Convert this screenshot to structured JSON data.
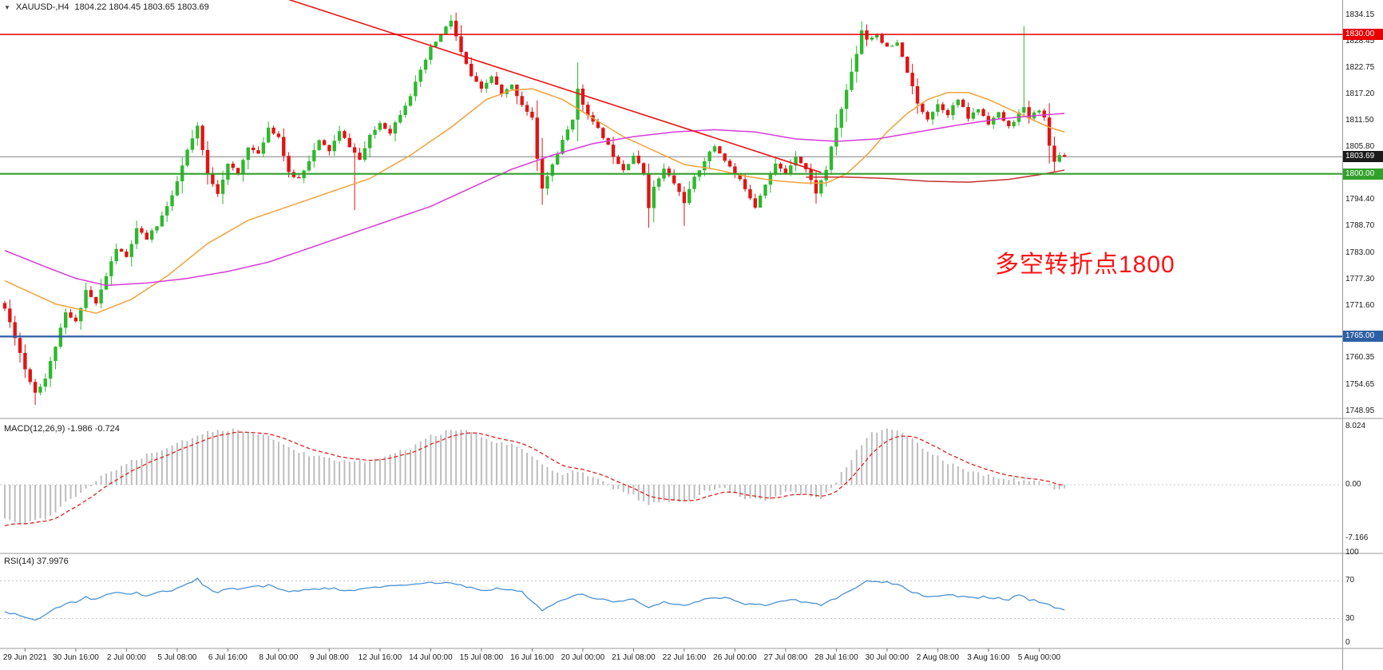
{
  "title": {
    "symbol": "XAUUSD-,H4",
    "ohlc": "1804.22 1804.45 1803.65 1803.69"
  },
  "annotation": {
    "text": "多空转折点1800",
    "color": "#ff1212"
  },
  "indicators": {
    "macd_label": "MACD(12,26,9) -1.986 -0.724",
    "rsi_label": "RSI(14) 37.9976"
  },
  "axis": {
    "price_labels": [
      "1834.15",
      "1828.45",
      "1822.75",
      "1817.20",
      "1811.50",
      "1805.80",
      "1794.40",
      "1788.70",
      "1783.00",
      "1777.30",
      "1771.60",
      "1760.35",
      "1754.65",
      "1748.95"
    ],
    "macd_labels": [
      {
        "text": "8.024",
        "value": 8.024
      },
      {
        "text": "0.00",
        "value": 0
      },
      {
        "text": "-7.166",
        "value": -7.166
      }
    ],
    "rsi_labels": [
      {
        "text": "100",
        "value": 100
      },
      {
        "text": "70",
        "value": 70
      },
      {
        "text": "30",
        "value": 30
      },
      {
        "text": "0",
        "value": 0
      }
    ],
    "date_labels": [
      "29 Jun 2021",
      "30 Jun 16:00",
      "2 Jul 00:00",
      "5 Jul 08:00",
      "6 Jul 16:00",
      "8 Jul 00:00",
      "9 Jul 08:00",
      "12 Jul 16:00",
      "14 Jul 00:00",
      "15 Jul 08:00",
      "16 Jul 16:00",
      "20 Jul 00:00",
      "21 Jul 08:00",
      "22 Jul 16:00",
      "26 Jul 00:00",
      "27 Jul 08:00",
      "28 Jul 16:00",
      "30 Jul 00:00",
      "2 Aug 08:00",
      "3 Aug 16:00",
      "5 Aug 00:00"
    ]
  },
  "chart_data": {
    "type": "candlestick",
    "symbol": "XAUUSD",
    "timeframe": "H4",
    "num_bars": 210,
    "price_axis_range": [
      1747.3,
      1837.4
    ],
    "close_anchors": [
      [
        0,
        1771
      ],
      [
        2,
        1765
      ],
      [
        4,
        1758
      ],
      [
        6,
        1753
      ],
      [
        8,
        1756
      ],
      [
        10,
        1763
      ],
      [
        12,
        1770
      ],
      [
        14,
        1768
      ],
      [
        16,
        1775
      ],
      [
        18,
        1772
      ],
      [
        20,
        1778
      ],
      [
        22,
        1784
      ],
      [
        24,
        1782
      ],
      [
        26,
        1788
      ],
      [
        28,
        1786
      ],
      [
        30,
        1789
      ],
      [
        33,
        1795
      ],
      [
        36,
        1805
      ],
      [
        38,
        1810
      ],
      [
        40,
        1800
      ],
      [
        42,
        1796
      ],
      [
        44,
        1802
      ],
      [
        46,
        1800
      ],
      [
        48,
        1806
      ],
      [
        50,
        1804
      ],
      [
        52,
        1810
      ],
      [
        54,
        1808
      ],
      [
        56,
        1800
      ],
      [
        58,
        1799
      ],
      [
        60,
        1803
      ],
      [
        62,
        1807
      ],
      [
        64,
        1805
      ],
      [
        66,
        1809
      ],
      [
        68,
        1806
      ],
      [
        70,
        1803
      ],
      [
        72,
        1808
      ],
      [
        74,
        1811
      ],
      [
        76,
        1809
      ],
      [
        78,
        1813
      ],
      [
        80,
        1817
      ],
      [
        82,
        1822
      ],
      [
        84,
        1827
      ],
      [
        86,
        1830
      ],
      [
        88,
        1833
      ],
      [
        90,
        1826
      ],
      [
        92,
        1821
      ],
      [
        94,
        1818
      ],
      [
        96,
        1821
      ],
      [
        98,
        1817
      ],
      [
        100,
        1819
      ],
      [
        102,
        1815
      ],
      [
        104,
        1812
      ],
      [
        105,
        1803
      ],
      [
        106,
        1797
      ],
      [
        108,
        1802
      ],
      [
        110,
        1807
      ],
      [
        112,
        1812
      ],
      [
        113,
        1818
      ],
      [
        114,
        1815
      ],
      [
        116,
        1811
      ],
      [
        118,
        1808
      ],
      [
        120,
        1804
      ],
      [
        122,
        1801
      ],
      [
        124,
        1804
      ],
      [
        126,
        1800
      ],
      [
        127,
        1793
      ],
      [
        128,
        1797
      ],
      [
        130,
        1801
      ],
      [
        132,
        1798
      ],
      [
        134,
        1794
      ],
      [
        136,
        1799
      ],
      [
        138,
        1803
      ],
      [
        140,
        1806
      ],
      [
        142,
        1803
      ],
      [
        144,
        1800
      ],
      [
        146,
        1797
      ],
      [
        148,
        1793
      ],
      [
        150,
        1798
      ],
      [
        152,
        1802
      ],
      [
        154,
        1800
      ],
      [
        156,
        1804
      ],
      [
        158,
        1801
      ],
      [
        160,
        1796
      ],
      [
        162,
        1801
      ],
      [
        164,
        1810
      ],
      [
        166,
        1818
      ],
      [
        168,
        1826
      ],
      [
        169,
        1831
      ],
      [
        170,
        1829
      ],
      [
        172,
        1830
      ],
      [
        174,
        1827
      ],
      [
        176,
        1828
      ],
      [
        178,
        1822
      ],
      [
        180,
        1815
      ],
      [
        182,
        1812
      ],
      [
        184,
        1815
      ],
      [
        186,
        1813
      ],
      [
        188,
        1816
      ],
      [
        190,
        1812
      ],
      [
        192,
        1814
      ],
      [
        194,
        1811
      ],
      [
        196,
        1813
      ],
      [
        198,
        1810
      ],
      [
        200,
        1813
      ],
      [
        201,
        1814
      ],
      [
        202,
        1812
      ],
      [
        204,
        1814
      ],
      [
        205,
        1812
      ],
      [
        206,
        1806
      ],
      [
        207,
        1803
      ],
      [
        208,
        1804
      ],
      [
        209,
        1803.69
      ]
    ],
    "wick_overrides": [
      {
        "bar": 6,
        "low": 1750.3
      },
      {
        "bar": 69,
        "low": 1792.2
      },
      {
        "bar": 88,
        "high": 1834.2
      },
      {
        "bar": 106,
        "low": 1793.3
      },
      {
        "bar": 113,
        "high": 1824
      },
      {
        "bar": 134,
        "low": 1788.8
      },
      {
        "bar": 169,
        "high": 1832.8
      },
      {
        "bar": 201,
        "high": 1831.8
      }
    ],
    "hlines": [
      {
        "price": 1830.0,
        "label": "1830.00",
        "color": "#e80000",
        "width": 1.5
      },
      {
        "price": 1800.0,
        "label": "1800.00",
        "color": "#33a02c",
        "width": 2.2
      },
      {
        "price": 1765.0,
        "label": "1765.00",
        "color": "#2e5fa3",
        "width": 2.2
      }
    ],
    "current_price": {
      "price": 1803.69,
      "label": "1803.69",
      "line_color": "#808080",
      "badge_color": "#1b1b1b"
    },
    "trendline": {
      "from_bar": 56,
      "from_price": 1837.5,
      "to_bar": 161,
      "to_price": 1800.3,
      "color": "#e81212"
    },
    "moving_averages": [
      {
        "name": "ma-medium-orange",
        "color": "#f2a23c",
        "anchors": [
          [
            0,
            1777
          ],
          [
            10,
            1772
          ],
          [
            18,
            1770
          ],
          [
            25,
            1773
          ],
          [
            32,
            1778
          ],
          [
            40,
            1785
          ],
          [
            48,
            1790
          ],
          [
            56,
            1793
          ],
          [
            64,
            1796
          ],
          [
            72,
            1799
          ],
          [
            80,
            1804
          ],
          [
            88,
            1810
          ],
          [
            95,
            1816
          ],
          [
            100,
            1818
          ],
          [
            104,
            1818.3
          ],
          [
            110,
            1816
          ],
          [
            116,
            1812
          ],
          [
            122,
            1808
          ],
          [
            128,
            1805
          ],
          [
            134,
            1802
          ],
          [
            140,
            1801
          ],
          [
            146,
            1799.5
          ],
          [
            152,
            1798.5
          ],
          [
            158,
            1798
          ],
          [
            162,
            1798
          ],
          [
            166,
            1800
          ],
          [
            170,
            1804
          ],
          [
            174,
            1809
          ],
          [
            178,
            1813
          ],
          [
            182,
            1816
          ],
          [
            186,
            1817.5
          ],
          [
            190,
            1817.5
          ],
          [
            194,
            1816
          ],
          [
            198,
            1814
          ],
          [
            202,
            1812
          ],
          [
            206,
            1810
          ],
          [
            209,
            1809
          ]
        ]
      },
      {
        "name": "ma-slow-magenta",
        "color": "#d63bd6",
        "anchors": [
          [
            0,
            1783.5
          ],
          [
            8,
            1780
          ],
          [
            14,
            1777.5
          ],
          [
            20,
            1776
          ],
          [
            28,
            1776.5
          ],
          [
            36,
            1777.5
          ],
          [
            44,
            1779
          ],
          [
            52,
            1781
          ],
          [
            60,
            1784
          ],
          [
            68,
            1787
          ],
          [
            76,
            1790
          ],
          [
            84,
            1793
          ],
          [
            92,
            1797
          ],
          [
            100,
            1801
          ],
          [
            108,
            1804
          ],
          [
            116,
            1806.5
          ],
          [
            124,
            1808
          ],
          [
            132,
            1809
          ],
          [
            140,
            1809.5
          ],
          [
            148,
            1809
          ],
          [
            156,
            1807.5
          ],
          [
            164,
            1807
          ],
          [
            172,
            1807.5
          ],
          [
            180,
            1809
          ],
          [
            188,
            1810.5
          ],
          [
            196,
            1811.8
          ],
          [
            204,
            1812.6
          ],
          [
            209,
            1813
          ]
        ]
      },
      {
        "name": "ma-long-red",
        "color": "#c93030",
        "anchors": [
          [
            158,
            1799.3
          ],
          [
            166,
            1799.3
          ],
          [
            174,
            1799
          ],
          [
            182,
            1798.4
          ],
          [
            190,
            1798.2
          ],
          [
            198,
            1798.8
          ],
          [
            204,
            1799.8
          ],
          [
            209,
            1800.8
          ]
        ]
      }
    ],
    "macd": {
      "params": "12,26,9",
      "current_values": [
        -1.986,
        -0.724
      ],
      "histogram_color": "#bdbdbd",
      "signal_color": "#e02020",
      "axis_values": [
        8.024,
        0,
        -7.166
      ],
      "values_anchors": [
        [
          0,
          -4.5
        ],
        [
          4,
          -5.2
        ],
        [
          8,
          -4.5
        ],
        [
          12,
          -2.5
        ],
        [
          16,
          -0.5
        ],
        [
          20,
          1.5
        ],
        [
          24,
          2.8
        ],
        [
          28,
          4
        ],
        [
          32,
          5
        ],
        [
          36,
          6
        ],
        [
          40,
          7
        ],
        [
          44,
          7.4
        ],
        [
          48,
          7.2
        ],
        [
          52,
          6.5
        ],
        [
          56,
          5
        ],
        [
          60,
          4
        ],
        [
          64,
          3.4
        ],
        [
          68,
          3
        ],
        [
          72,
          3.2
        ],
        [
          76,
          4
        ],
        [
          80,
          5
        ],
        [
          84,
          6.5
        ],
        [
          88,
          7.3
        ],
        [
          90,
          7.5
        ],
        [
          92,
          7
        ],
        [
          96,
          6
        ],
        [
          100,
          5.4
        ],
        [
          104,
          4
        ],
        [
          106,
          2.5
        ],
        [
          110,
          1.5
        ],
        [
          113,
          2
        ],
        [
          116,
          1
        ],
        [
          120,
          -0.5
        ],
        [
          124,
          -1.5
        ],
        [
          127,
          -2.8
        ],
        [
          130,
          -2
        ],
        [
          134,
          -2.5
        ],
        [
          138,
          -1
        ],
        [
          142,
          -0.5
        ],
        [
          146,
          -1.8
        ],
        [
          150,
          -2
        ],
        [
          154,
          -1
        ],
        [
          158,
          -1.2
        ],
        [
          161,
          -1.8
        ],
        [
          164,
          0.5
        ],
        [
          168,
          4.5
        ],
        [
          170,
          6.5
        ],
        [
          173,
          7.5
        ],
        [
          176,
          7.2
        ],
        [
          179,
          6
        ],
        [
          182,
          4.5
        ],
        [
          186,
          3
        ],
        [
          190,
          2
        ],
        [
          194,
          1.2
        ],
        [
          198,
          0.8
        ],
        [
          202,
          0.5
        ],
        [
          205,
          0.2
        ],
        [
          207,
          -0.4
        ],
        [
          209,
          -0.72
        ]
      ]
    },
    "rsi": {
      "period": 14,
      "current": 37.9976,
      "color": "#4a90d2",
      "levels": [
        70,
        30
      ],
      "anchors": [
        [
          0,
          38
        ],
        [
          3,
          33
        ],
        [
          6,
          28
        ],
        [
          8,
          34
        ],
        [
          10,
          40
        ],
        [
          12,
          45
        ],
        [
          14,
          48
        ],
        [
          16,
          53
        ],
        [
          18,
          50
        ],
        [
          20,
          55
        ],
        [
          22,
          58
        ],
        [
          24,
          55
        ],
        [
          26,
          57
        ],
        [
          28,
          55
        ],
        [
          30,
          58
        ],
        [
          33,
          60
        ],
        [
          36,
          66
        ],
        [
          38,
          72
        ],
        [
          40,
          62
        ],
        [
          42,
          58
        ],
        [
          44,
          62
        ],
        [
          46,
          60
        ],
        [
          48,
          63
        ],
        [
          52,
          65
        ],
        [
          56,
          58
        ],
        [
          60,
          61
        ],
        [
          64,
          62
        ],
        [
          68,
          60
        ],
        [
          72,
          62
        ],
        [
          76,
          64
        ],
        [
          80,
          66
        ],
        [
          84,
          68
        ],
        [
          88,
          68
        ],
        [
          90,
          65
        ],
        [
          94,
          60
        ],
        [
          98,
          62
        ],
        [
          102,
          58
        ],
        [
          106,
          38
        ],
        [
          108,
          45
        ],
        [
          110,
          50
        ],
        [
          113,
          56
        ],
        [
          116,
          52
        ],
        [
          120,
          48
        ],
        [
          124,
          50
        ],
        [
          127,
          42
        ],
        [
          130,
          48
        ],
        [
          134,
          44
        ],
        [
          138,
          50
        ],
        [
          142,
          52
        ],
        [
          146,
          46
        ],
        [
          150,
          44
        ],
        [
          154,
          50
        ],
        [
          158,
          48
        ],
        [
          161,
          44
        ],
        [
          164,
          52
        ],
        [
          168,
          64
        ],
        [
          170,
          71
        ],
        [
          173,
          69
        ],
        [
          176,
          67
        ],
        [
          179,
          58
        ],
        [
          182,
          53
        ],
        [
          186,
          55
        ],
        [
          190,
          52
        ],
        [
          194,
          53
        ],
        [
          198,
          50
        ],
        [
          200,
          55
        ],
        [
          202,
          50
        ],
        [
          204,
          48
        ],
        [
          206,
          44
        ],
        [
          208,
          40
        ],
        [
          209,
          38
        ]
      ]
    }
  },
  "colors": {
    "up": "#2eb82e",
    "down": "#e01414",
    "background": "#ffffff",
    "grid": "#999999"
  }
}
